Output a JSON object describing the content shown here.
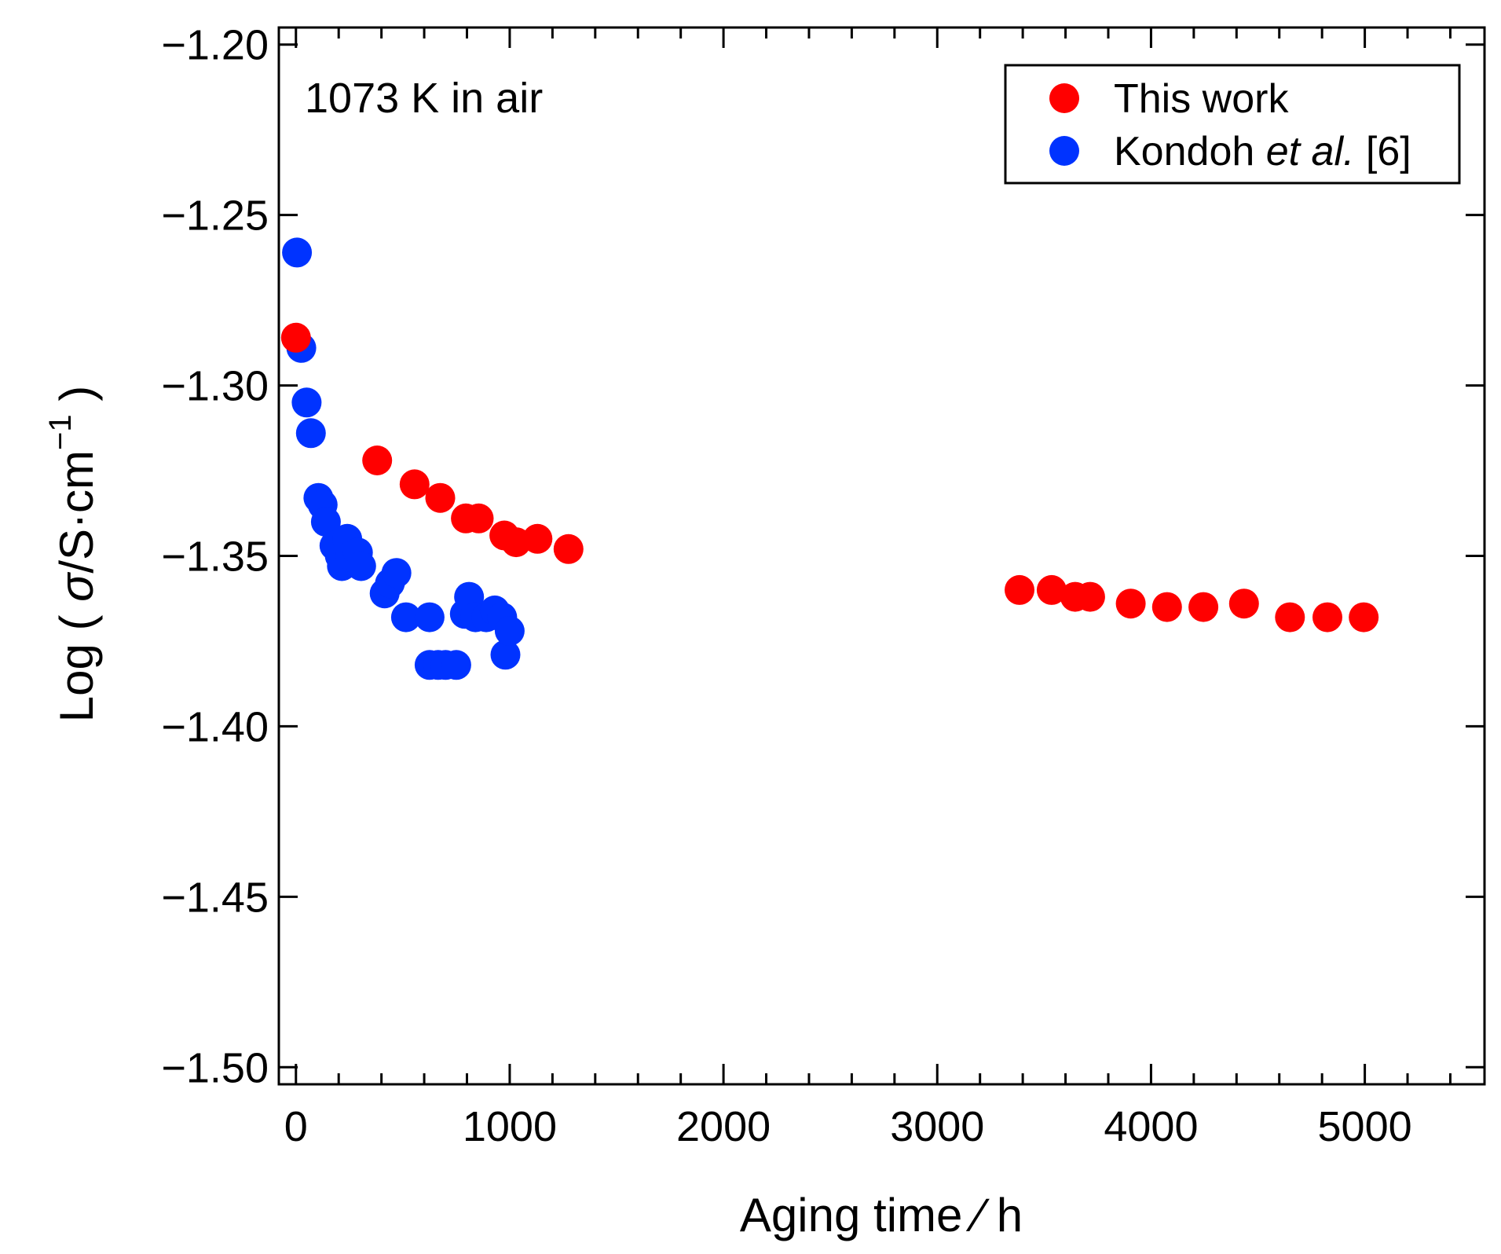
{
  "chart_data": {
    "type": "scatter",
    "title": "",
    "annotation": "1073 K in air",
    "xlabel": "Aging time ∕ h",
    "ylabel": {
      "prefix": "Log ( ",
      "sigma": "σ",
      "unit": "/S·cm",
      "superscript": "−1",
      "suffix": " )"
    },
    "xlim": [
      -80,
      5560
    ],
    "ylim": [
      -1.505,
      -1.195
    ],
    "x_ticks": [
      0,
      1000,
      2000,
      3000,
      4000,
      5000
    ],
    "x_tick_labels": [
      "0",
      "1000",
      "2000",
      "3000",
      "4000",
      "5000"
    ],
    "x_minor_step": 200,
    "y_ticks": [
      -1.2,
      -1.25,
      -1.3,
      -1.35,
      -1.4,
      -1.45,
      -1.5
    ],
    "y_tick_labels": [
      "−1.20",
      "−1.25",
      "−1.30",
      "−1.35",
      "−1.40",
      "−1.45",
      "−1.50"
    ],
    "grid": false,
    "legend": {
      "placement": "top-right",
      "entries": [
        {
          "label": "This work",
          "color": "#ff0000"
        },
        {
          "label_prefix": "Kondoh ",
          "label_italic": "et al.",
          "label_suffix": " [6]",
          "color": "#0033ff"
        }
      ]
    },
    "series": [
      {
        "name": "This work",
        "color": "#ff0000",
        "points": [
          [
            0,
            -1.286
          ],
          [
            380,
            -1.322
          ],
          [
            555,
            -1.329
          ],
          [
            675,
            -1.333
          ],
          [
            795,
            -1.339
          ],
          [
            855,
            -1.339
          ],
          [
            975,
            -1.344
          ],
          [
            1030,
            -1.346
          ],
          [
            1130,
            -1.345
          ],
          [
            1275,
            -1.348
          ],
          [
            3385,
            -1.36
          ],
          [
            3535,
            -1.36
          ],
          [
            3645,
            -1.362
          ],
          [
            3715,
            -1.362
          ],
          [
            3905,
            -1.364
          ],
          [
            4075,
            -1.365
          ],
          [
            4245,
            -1.365
          ],
          [
            4435,
            -1.364
          ],
          [
            4650,
            -1.368
          ],
          [
            4825,
            -1.368
          ],
          [
            4995,
            -1.368
          ]
        ]
      },
      {
        "name": "Kondoh et al. [6]",
        "color": "#0033ff",
        "points": [
          [
            5,
            -1.261
          ],
          [
            25,
            -1.289
          ],
          [
            50,
            -1.305
          ],
          [
            70,
            -1.314
          ],
          [
            105,
            -1.333
          ],
          [
            125,
            -1.335
          ],
          [
            140,
            -1.34
          ],
          [
            180,
            -1.347
          ],
          [
            205,
            -1.35
          ],
          [
            215,
            -1.353
          ],
          [
            240,
            -1.345
          ],
          [
            255,
            -1.35
          ],
          [
            290,
            -1.349
          ],
          [
            305,
            -1.353
          ],
          [
            415,
            -1.361
          ],
          [
            440,
            -1.358
          ],
          [
            470,
            -1.355
          ],
          [
            515,
            -1.368
          ],
          [
            625,
            -1.368
          ],
          [
            625,
            -1.382
          ],
          [
            665,
            -1.382
          ],
          [
            700,
            -1.382
          ],
          [
            750,
            -1.382
          ],
          [
            790,
            -1.367
          ],
          [
            810,
            -1.362
          ],
          [
            840,
            -1.368
          ],
          [
            890,
            -1.368
          ],
          [
            930,
            -1.366
          ],
          [
            965,
            -1.368
          ],
          [
            980,
            -1.379
          ],
          [
            1000,
            -1.372
          ]
        ]
      }
    ]
  }
}
